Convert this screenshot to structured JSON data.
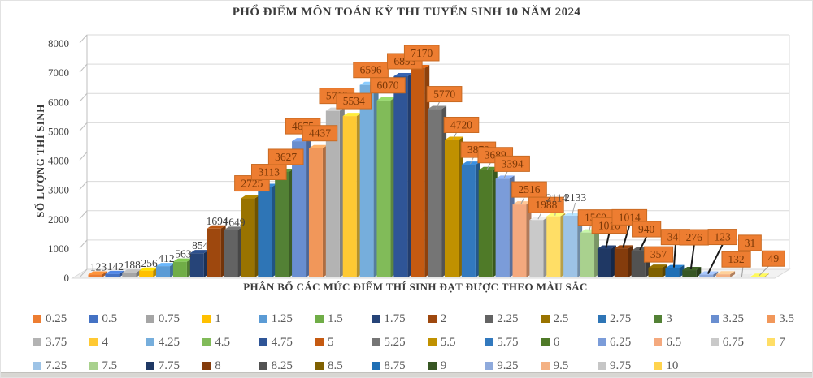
{
  "title": "PHỔ ĐIỂM MÔN TOÁN KỲ THI TUYỂN SINH 10 NĂM 2024",
  "y_axis": {
    "title": "SỐ LƯỢNG THÍ SINH",
    "ticks": [
      0,
      1000,
      2000,
      3000,
      4000,
      5000,
      6000,
      7000,
      8000
    ]
  },
  "x_axis": {
    "title": "PHÂN BỔ CÁC MỨC ĐIỂM THÍ SINH ĐẠT ĐƯỢC THEO MÀU SẮC"
  },
  "chart_data": {
    "type": "bar",
    "style": "3d-column",
    "title": "PHỔ ĐIỂM MÔN TOÁN KỲ THI TUYỂN SINH 10 NĂM 2024",
    "xlabel": "PHÂN BỔ CÁC MỨC ĐIỂM THÍ SINH ĐẠT ĐƯỢC THEO MÀU SẮC",
    "ylabel": "SỐ LƯỢNG THÍ SINH",
    "ylim": [
      0,
      8000
    ],
    "grid": true,
    "legend_position": "bottom",
    "data_labels": "all",
    "data_label_box_color": "#ED7D31",
    "data_label_text_color": "#7C3806",
    "categories": [
      "0.25",
      "0.5",
      "0.75",
      "1",
      "1.25",
      "1.5",
      "1.75",
      "2",
      "2.25",
      "2.5",
      "2.75",
      "3",
      "3.25",
      "3.5",
      "3.75",
      "4",
      "4.25",
      "4.5",
      "4.75",
      "5",
      "5.25",
      "5.5",
      "5.75",
      "6",
      "6.25",
      "6.5",
      "6.75",
      "7",
      "7.25",
      "7.5",
      "7.75",
      "8",
      "8.25",
      "8.5",
      "8.75",
      "9",
      "9.25",
      "9.5",
      "9.75",
      "10"
    ],
    "values": [
      123,
      142,
      188,
      256,
      412,
      563,
      854,
      1694,
      1649,
      2725,
      3113,
      3627,
      4675,
      4437,
      5712,
      5534,
      6596,
      6070,
      6893,
      7170,
      5770,
      4720,
      3873,
      3689,
      3394,
      2516,
      1988,
      2114,
      2133,
      1560,
      1010,
      1014,
      940,
      357,
      341,
      276,
      123,
      132,
      31,
      49
    ],
    "colors": [
      "#ED7D31",
      "#4472C4",
      "#A5A5A5",
      "#FFC000",
      "#5B9BD5",
      "#70AD47",
      "#264478",
      "#9E480E",
      "#636363",
      "#997300",
      "#2E75B6",
      "#538135",
      "#698ED0",
      "#F1975A",
      "#B3B3B3",
      "#FFC933",
      "#76AEDC",
      "#81BB59",
      "#2F5597",
      "#C55A11",
      "#757575",
      "#C09100",
      "#3279BE",
      "#4F7A28",
      "#7B9CD9",
      "#F4A97E",
      "#C9C9C9",
      "#FFDE66",
      "#9DC3E6",
      "#A9D18E",
      "#1F3864",
      "#843C0C",
      "#525252",
      "#7F6000",
      "#1F6FB5",
      "#375623",
      "#8FAADC",
      "#F4B183",
      "#C6C6C6",
      "#FFD34D"
    ]
  }
}
